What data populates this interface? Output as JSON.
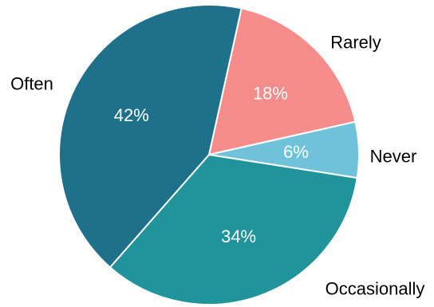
{
  "chart_data": {
    "type": "pie",
    "categories": [
      "Rarely",
      "Never",
      "Occasionally",
      "Often"
    ],
    "values": [
      18,
      6,
      34,
      42
    ],
    "value_labels": [
      "18%",
      "6%",
      "34%",
      "42%"
    ],
    "colors": [
      "#f48c8c",
      "#6fc2da",
      "#21939b",
      "#1f718b"
    ],
    "title": "",
    "legend": "none",
    "label_position": "outside"
  }
}
